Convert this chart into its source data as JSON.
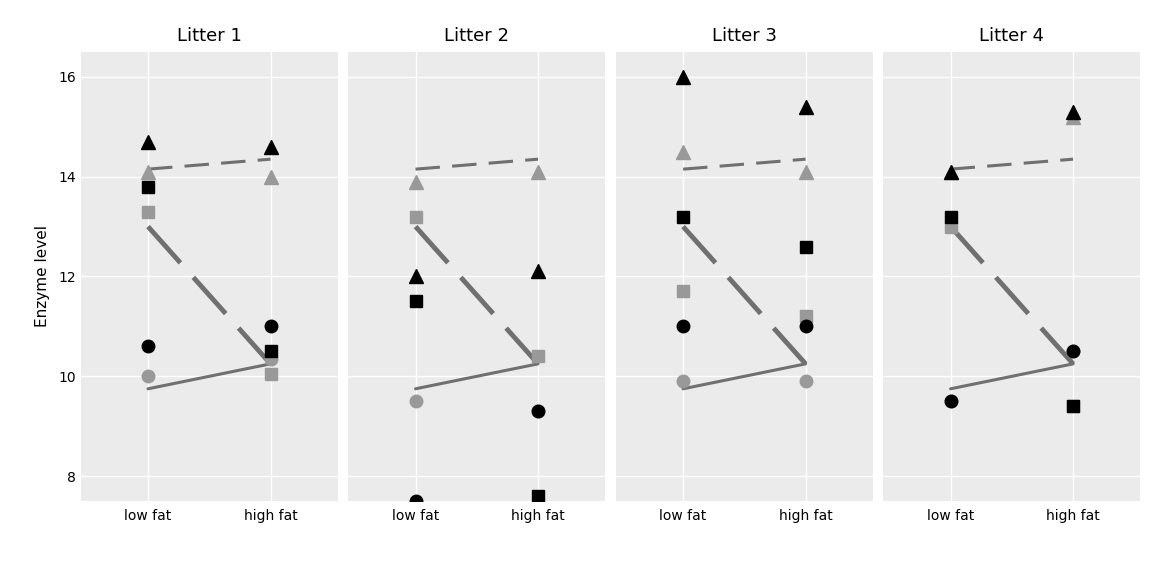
{
  "litters": [
    "Litter 1",
    "Litter 2",
    "Litter 3",
    "Litter 4"
  ],
  "x_labels": [
    "low fat",
    "high fat"
  ],
  "ylabel": "Enzyme level",
  "ylim": [
    7.5,
    16.5
  ],
  "yticks": [
    8,
    10,
    12,
    14,
    16
  ],
  "raw_data": {
    "placebo": {
      "litter1": {
        "low": 10.6,
        "high": 11.0
      },
      "litter2": {
        "low": 7.5,
        "high": 9.3
      },
      "litter3": {
        "low": 11.0,
        "high": 11.0
      },
      "litter4": {
        "low": 9.5,
        "high": 10.5
      }
    },
    "drugD1": {
      "litter1": {
        "low": 14.7,
        "high": 14.6
      },
      "litter2": {
        "low": 12.0,
        "high": 12.1
      },
      "litter3": {
        "low": 16.0,
        "high": 15.4
      },
      "litter4": {
        "low": 14.1,
        "high": 15.3
      }
    },
    "drugD2": {
      "litter1": {
        "low": 13.8,
        "high": 10.5
      },
      "litter2": {
        "low": 11.5,
        "high": 7.6
      },
      "litter3": {
        "low": 13.2,
        "high": 12.6
      },
      "litter4": {
        "low": 13.2,
        "high": 9.4
      }
    }
  },
  "adj_data": {
    "placebo": {
      "litter1": {
        "low": 10.0,
        "high": 10.35
      },
      "litter2": {
        "low": 9.5,
        "high": 9.3
      },
      "litter3": {
        "low": 9.9,
        "high": 9.9
      },
      "litter4": {
        "low": 9.5,
        "high": 10.5
      }
    },
    "drugD1": {
      "litter1": {
        "low": 14.1,
        "high": 14.0
      },
      "litter2": {
        "low": 13.9,
        "high": 14.1
      },
      "litter3": {
        "low": 14.5,
        "high": 14.1
      },
      "litter4": {
        "low": 14.1,
        "high": 15.2
      }
    },
    "drugD2": {
      "litter1": {
        "low": 13.3,
        "high": 10.05
      },
      "litter2": {
        "low": 13.2,
        "high": 10.4
      },
      "litter3": {
        "low": 11.7,
        "high": 11.2
      },
      "litter4": {
        "low": 13.0,
        "high": 9.4
      }
    }
  },
  "mean_lines": {
    "placebo": {
      "low": 9.75,
      "high": 10.25
    },
    "drugD1": {
      "low": 14.15,
      "high": 14.35
    },
    "drugD2": {
      "low": 13.0,
      "high": 10.25
    }
  },
  "colors": {
    "black": "#000000",
    "grey": "#999999",
    "line_grey": "#707070"
  },
  "bg_color": "#ebebeb",
  "grid_color": "#ffffff",
  "marker_size_black": 9,
  "marker_size_grey": 9
}
